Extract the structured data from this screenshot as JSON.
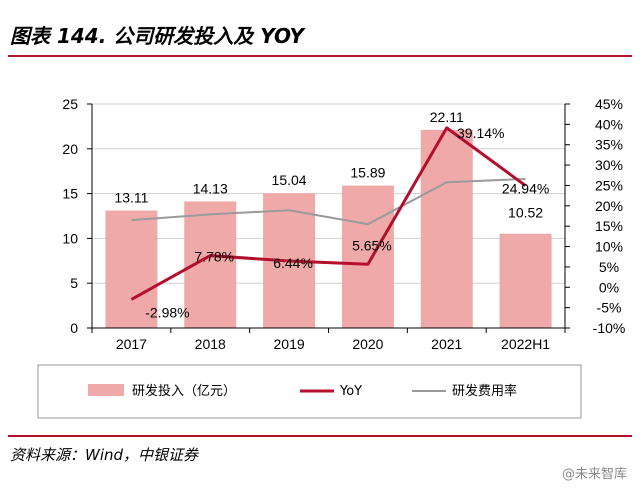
{
  "header": {
    "title": "图表 144. 公司研发投入及 YOY"
  },
  "footer": {
    "source": "资料来源：Wind，中银证券"
  },
  "watermark": {
    "text": "@未来智库"
  },
  "colors": {
    "bar": "#f0a9a9",
    "yoy": "#b40f2d",
    "ratio": "#9a9a9a",
    "rule": "#b40f2d"
  },
  "chart_data": {
    "type": "bar",
    "categories": [
      "2017",
      "2018",
      "2019",
      "2020",
      "2021",
      "2022H1"
    ],
    "series": [
      {
        "name": "研发投入（亿元）",
        "type": "bar",
        "axis": "left",
        "values": [
          13.11,
          14.13,
          15.04,
          15.89,
          22.11,
          10.52
        ],
        "labels": [
          "13.11",
          "14.13",
          "15.04",
          "15.89",
          "22.11",
          "10.52"
        ]
      },
      {
        "name": "YoY",
        "type": "line",
        "axis": "right",
        "values": [
          -2.98,
          7.78,
          6.44,
          5.65,
          39.14,
          24.94
        ],
        "labels": [
          "-2.98%",
          "7.78%",
          "6.44%",
          "5.65%",
          "39.14%",
          "24.94%"
        ]
      },
      {
        "name": "研发费用率",
        "type": "line",
        "axis": "right",
        "values": [
          16.5,
          17.9,
          18.9,
          15.5,
          25.8,
          26.6
        ]
      }
    ],
    "ylim_left": [
      0,
      25
    ],
    "yticks_left": [
      "0",
      "5",
      "10",
      "15",
      "20",
      "25"
    ],
    "ylim_right": [
      -10,
      45
    ],
    "yticks_right": [
      "-10%",
      "-5%",
      "0%",
      "5%",
      "10%",
      "15%",
      "20%",
      "25%",
      "30%",
      "35%",
      "40%",
      "45%"
    ],
    "grid": true,
    "legend": "bottom"
  }
}
